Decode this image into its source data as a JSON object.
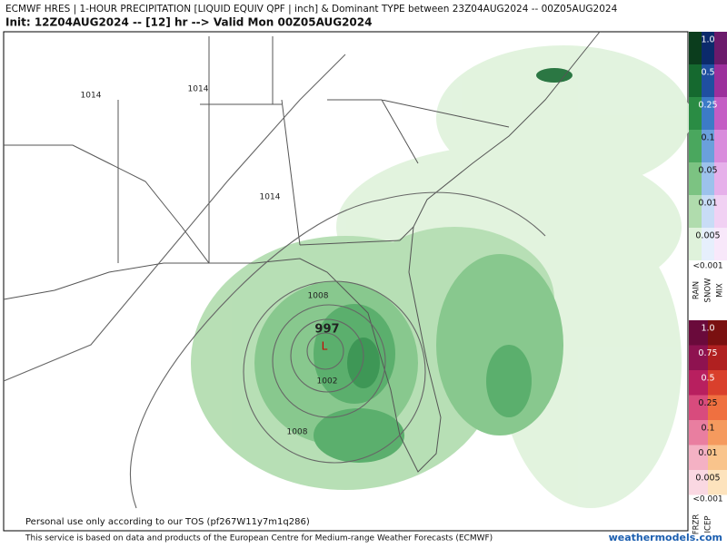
{
  "header": {
    "title": "ECMWF HRES | 1-HOUR PRECIPITATION [LIQUID EQUIV QPF | inch] & Dominant TYPE between 23Z04AUG2024 -- 00Z05AUG2024",
    "subtitle": "Init: 12Z04AUG2024 -- [12] hr --> Valid Mon 00Z05AUG2024"
  },
  "map": {
    "isobar_labels": [
      "1014",
      "1014",
      "1014",
      "1008",
      "997",
      "1002",
      "1008"
    ],
    "disclaimer": "Personal use only according to our TOS (pf267W11y7m1q286)"
  },
  "legend": {
    "upper": {
      "levels": [
        "1.0",
        "0.5",
        "0.25",
        "0.1",
        "0.05",
        "0.01",
        "0.005"
      ],
      "below": "<0.001",
      "types": [
        "RAIN",
        "SNOW",
        "MIX"
      ]
    },
    "lower": {
      "levels": [
        "1.0",
        "0.75",
        "0.5",
        "0.25",
        "0.1",
        "0.01",
        "0.005"
      ],
      "below": "<0.001",
      "types": [
        "FRZR",
        "ICEP"
      ]
    }
  },
  "footer": {
    "credit": "This service is based on data and products of the European Centre for Medium-range Weather Forecasts (ECMWF)",
    "site": "weathermodels.com"
  }
}
